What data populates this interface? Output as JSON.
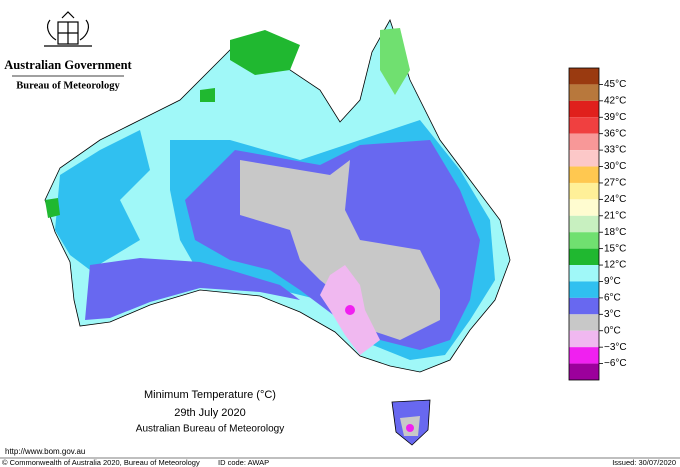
{
  "header": {
    "government": "Australian Government",
    "agency": "Bureau of Meteorology"
  },
  "title": {
    "line1": "Minimum Temperature (°C)",
    "line2": "29th July 2020",
    "line3": "Australian Bureau of Meteorology"
  },
  "legend": {
    "labels": [
      "45°C",
      "42°C",
      "39°C",
      "36°C",
      "33°C",
      "30°C",
      "27°C",
      "24°C",
      "21°C",
      "18°C",
      "15°C",
      "12°C",
      "9°C",
      "6°C",
      "3°C",
      "0°C",
      "−3°C",
      "−6°C"
    ],
    "colors": [
      "#9a3a10",
      "#b8783c",
      "#e0201c",
      "#f04040",
      "#f89898",
      "#fcc8c8",
      "#ffc850",
      "#fff098",
      "#fffcd0",
      "#c8f0c0",
      "#70e070",
      "#20b830",
      "#a0f8f8",
      "#30c0f0",
      "#6868f0",
      "#c8c8c8",
      "#f0b8f0",
      "#f020f0",
      "#9c009c"
    ]
  },
  "footer": {
    "url": "http://www.bom.gov.au",
    "copyright": "© Commonwealth of Australia 2020, Bureau of Meteorology",
    "id_code": "ID code: AWAP",
    "issued": "Issued: 30/07/2020"
  }
}
